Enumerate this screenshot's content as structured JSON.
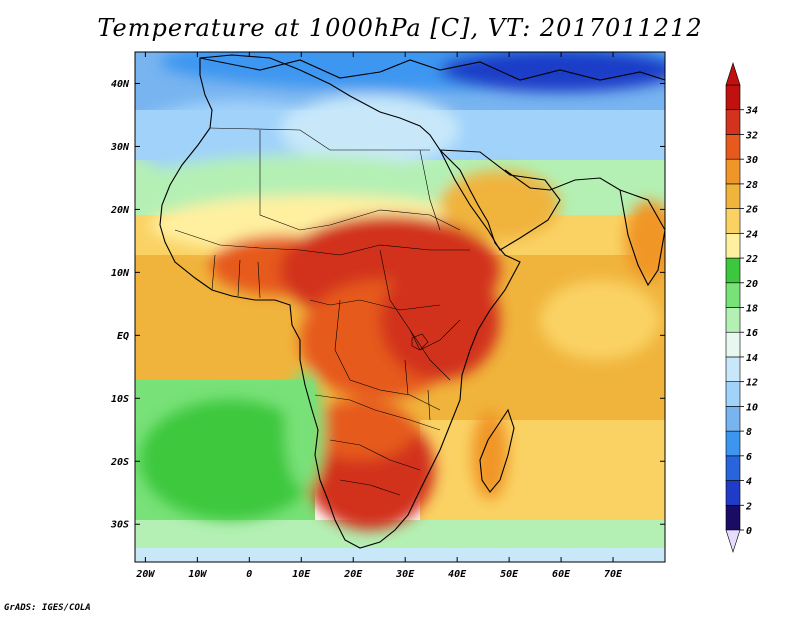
{
  "title": "Temperature at 1000hPa [C], VT: 2017011212",
  "credit": "GrADS: IGES/COLA",
  "lat_labels": [
    "40N",
    "30N",
    "20N",
    "10N",
    "EQ",
    "10S",
    "20S",
    "30S"
  ],
  "lon_labels": [
    "20W",
    "10W",
    "0",
    "10E",
    "20E",
    "30E",
    "40E",
    "50E",
    "60E",
    "70E"
  ],
  "lon_range": [
    -22,
    80
  ],
  "lat_range": [
    -36,
    45
  ],
  "colorbar": {
    "levels": [
      "0",
      "2",
      "4",
      "6",
      "8",
      "10",
      "12",
      "14",
      "16",
      "18",
      "20",
      "22",
      "24",
      "26",
      "28",
      "30",
      "32",
      "34"
    ],
    "colors": [
      "#1a0c64",
      "#1e3cc8",
      "#2864dc",
      "#3c96f0",
      "#78b4f0",
      "#a0d2fa",
      "#c8e8fa",
      "#e6f8f0",
      "#b4f0b4",
      "#78e178",
      "#3cc83c",
      "#fff0a0",
      "#fad264",
      "#f0b43c",
      "#f09628",
      "#e65a1e",
      "#d2321e",
      "#c01010"
    ],
    "under_color": "#e6dcff",
    "over_color": "#c01010"
  }
}
